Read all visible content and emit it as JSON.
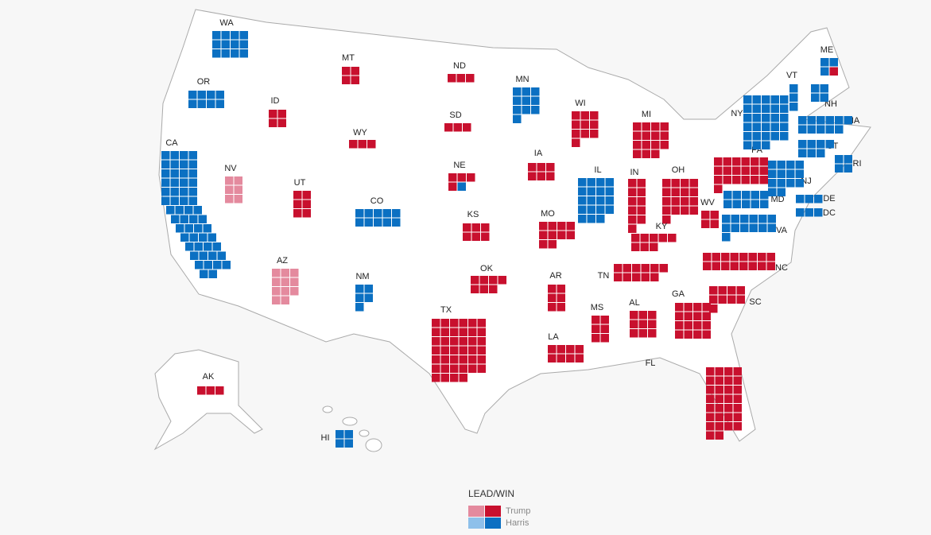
{
  "map": {
    "colors": {
      "Trump": {
        "win": "#c8102e",
        "lead": "#e48a9e"
      },
      "Harris": {
        "win": "#0b70c2",
        "lead": "#8ec0ea"
      }
    },
    "states": [
      {
        "label": "WA",
        "status": "win",
        "segments": [
          {
            "party": "Harris",
            "count": 12
          }
        ]
      },
      {
        "label": "OR",
        "status": "win",
        "segments": [
          {
            "party": "Harris",
            "count": 8
          }
        ]
      },
      {
        "label": "CA",
        "status": "win",
        "segments": [
          {
            "party": "Harris",
            "count": 54
          }
        ]
      },
      {
        "label": "NV",
        "status": "lead",
        "segments": [
          {
            "party": "Trump",
            "count": 6
          }
        ]
      },
      {
        "label": "ID",
        "status": "win",
        "segments": [
          {
            "party": "Trump",
            "count": 4
          }
        ]
      },
      {
        "label": "MT",
        "status": "win",
        "segments": [
          {
            "party": "Trump",
            "count": 4
          }
        ]
      },
      {
        "label": "WY",
        "status": "win",
        "segments": [
          {
            "party": "Trump",
            "count": 3
          }
        ]
      },
      {
        "label": "UT",
        "status": "win",
        "segments": [
          {
            "party": "Trump",
            "count": 6
          }
        ]
      },
      {
        "label": "CO",
        "status": "win",
        "segments": [
          {
            "party": "Harris",
            "count": 10
          }
        ]
      },
      {
        "label": "AZ",
        "status": "lead",
        "segments": [
          {
            "party": "Trump",
            "count": 11
          }
        ]
      },
      {
        "label": "NM",
        "status": "win",
        "segments": [
          {
            "party": "Harris",
            "count": 5
          }
        ]
      },
      {
        "label": "ND",
        "status": "win",
        "segments": [
          {
            "party": "Trump",
            "count": 3
          }
        ]
      },
      {
        "label": "SD",
        "status": "win",
        "segments": [
          {
            "party": "Trump",
            "count": 3
          }
        ]
      },
      {
        "label": "NE",
        "status": "win",
        "segments": [
          {
            "party": "Trump",
            "count": 4
          },
          {
            "party": "Harris",
            "count": 1
          }
        ]
      },
      {
        "label": "KS",
        "status": "win",
        "segments": [
          {
            "party": "Trump",
            "count": 6
          }
        ]
      },
      {
        "label": "OK",
        "status": "win",
        "segments": [
          {
            "party": "Trump",
            "count": 7
          }
        ]
      },
      {
        "label": "TX",
        "status": "win",
        "segments": [
          {
            "party": "Trump",
            "count": 40
          }
        ]
      },
      {
        "label": "MN",
        "status": "win",
        "segments": [
          {
            "party": "Harris",
            "count": 10
          }
        ]
      },
      {
        "label": "IA",
        "status": "win",
        "segments": [
          {
            "party": "Trump",
            "count": 6
          }
        ]
      },
      {
        "label": "MO",
        "status": "win",
        "segments": [
          {
            "party": "Trump",
            "count": 10
          }
        ]
      },
      {
        "label": "AR",
        "status": "win",
        "segments": [
          {
            "party": "Trump",
            "count": 6
          }
        ]
      },
      {
        "label": "LA",
        "status": "win",
        "segments": [
          {
            "party": "Trump",
            "count": 8
          }
        ]
      },
      {
        "label": "WI",
        "status": "win",
        "segments": [
          {
            "party": "Trump",
            "count": 10
          }
        ]
      },
      {
        "label": "IL",
        "status": "win",
        "segments": [
          {
            "party": "Harris",
            "count": 19
          }
        ]
      },
      {
        "label": "MI",
        "status": "win",
        "segments": [
          {
            "party": "Trump",
            "count": 15
          }
        ]
      },
      {
        "label": "IN",
        "status": "win",
        "segments": [
          {
            "party": "Trump",
            "count": 11
          }
        ]
      },
      {
        "label": "OH",
        "status": "win",
        "segments": [
          {
            "party": "Trump",
            "count": 17
          }
        ]
      },
      {
        "label": "KY",
        "status": "win",
        "segments": [
          {
            "party": "Trump",
            "count": 8
          }
        ]
      },
      {
        "label": "TN",
        "status": "win",
        "segments": [
          {
            "party": "Trump",
            "count": 11
          }
        ]
      },
      {
        "label": "MS",
        "status": "win",
        "segments": [
          {
            "party": "Trump",
            "count": 6
          }
        ]
      },
      {
        "label": "AL",
        "status": "win",
        "segments": [
          {
            "party": "Trump",
            "count": 9
          }
        ]
      },
      {
        "label": "GA",
        "status": "win",
        "segments": [
          {
            "party": "Trump",
            "count": 16
          }
        ]
      },
      {
        "label": "FL",
        "status": "win",
        "segments": [
          {
            "party": "Trump",
            "count": 30
          }
        ]
      },
      {
        "label": "SC",
        "status": "win",
        "segments": [
          {
            "party": "Trump",
            "count": 9
          }
        ]
      },
      {
        "label": "NC",
        "status": "win",
        "segments": [
          {
            "party": "Trump",
            "count": 16
          }
        ]
      },
      {
        "label": "WV",
        "status": "win",
        "segments": [
          {
            "party": "Trump",
            "count": 4
          }
        ]
      },
      {
        "label": "VA",
        "status": "win",
        "segments": [
          {
            "party": "Harris",
            "count": 13
          }
        ]
      },
      {
        "label": "PA",
        "status": "win",
        "segments": [
          {
            "party": "Trump",
            "count": 19
          }
        ]
      },
      {
        "label": "MD",
        "status": "win",
        "segments": [
          {
            "party": "Harris",
            "count": 10
          }
        ]
      },
      {
        "label": "NY",
        "status": "win",
        "segments": [
          {
            "party": "Harris",
            "count": 28
          }
        ]
      },
      {
        "label": "NJ",
        "status": "win",
        "segments": [
          {
            "party": "Harris",
            "count": 14
          }
        ]
      },
      {
        "label": "DE",
        "status": "win",
        "segments": [
          {
            "party": "Harris",
            "count": 3
          }
        ]
      },
      {
        "label": "DC",
        "status": "win",
        "segments": [
          {
            "party": "Harris",
            "count": 3
          }
        ]
      },
      {
        "label": "CT",
        "status": "win",
        "segments": [
          {
            "party": "Harris",
            "count": 7
          }
        ]
      },
      {
        "label": "RI",
        "status": "win",
        "segments": [
          {
            "party": "Harris",
            "count": 4
          }
        ]
      },
      {
        "label": "MA",
        "status": "win",
        "segments": [
          {
            "party": "Harris",
            "count": 11
          }
        ]
      },
      {
        "label": "NH",
        "status": "win",
        "segments": [
          {
            "party": "Harris",
            "count": 4
          }
        ]
      },
      {
        "label": "VT",
        "status": "win",
        "segments": [
          {
            "party": "Harris",
            "count": 3
          }
        ]
      },
      {
        "label": "ME",
        "status": "win",
        "segments": [
          {
            "party": "Harris",
            "count": 3
          },
          {
            "party": "Trump",
            "count": 1
          }
        ]
      },
      {
        "label": "AK",
        "status": "win",
        "segments": [
          {
            "party": "Trump",
            "count": 3
          }
        ]
      },
      {
        "label": "HI",
        "status": "win",
        "segments": [
          {
            "party": "Harris",
            "count": 4
          }
        ]
      }
    ],
    "legend": {
      "title": "LEAD/WIN",
      "entries": [
        "Trump",
        "Harris"
      ]
    }
  }
}
